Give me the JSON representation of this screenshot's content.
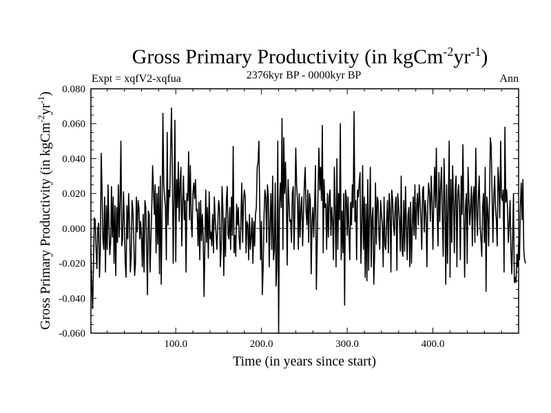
{
  "chart_data": {
    "type": "line",
    "title_main": "Gross Primary Productivity (in kgCm",
    "title_sup1": "-2",
    "title_mid": "yr",
    "title_sup2": "-1",
    "title_end": ")",
    "subtitle_left": "Expt = xqfV2-xqfua",
    "subtitle_center": "2376kyr BP - 0000kyr BP",
    "subtitle_right": "Ann",
    "xlabel": "Time (in years since start)",
    "ylabel_main": "Gross Primary Productivity (in kgCm",
    "ylabel_sup1": "-2",
    "ylabel_mid": "yr",
    "ylabel_sup2": "-1",
    "ylabel_end": ")",
    "xlim": [
      1,
      500
    ],
    "ylim": [
      -0.06,
      0.08
    ],
    "x_ticks": [
      100,
      200,
      300,
      400
    ],
    "x_tick_labels": [
      "100.0",
      "200.0",
      "300.0",
      "400.0"
    ],
    "y_ticks": [
      -0.06,
      -0.04,
      -0.02,
      0.0,
      0.02,
      0.04,
      0.06,
      0.08
    ],
    "y_tick_labels": [
      "-0.060",
      "-0.040",
      "-0.020",
      "0.000",
      "0.020",
      "0.040",
      "0.060",
      "0.080"
    ],
    "reference_line": 0.0,
    "series": [
      {
        "name": "Ann",
        "x_start": 1,
        "x_step": 1,
        "values": [
          -0.012,
          -0.032,
          -0.046,
          -0.022,
          0.006,
          0.005,
          -0.012,
          -0.023,
          0.0,
          0.003,
          -0.028,
          -0.013,
          0.043,
          0.022,
          -0.006,
          -0.012,
          0.018,
          -0.025,
          0.013,
          -0.012,
          0.025,
          0.002,
          -0.015,
          -0.008,
          0.024,
          -0.005,
          0.018,
          -0.02,
          0.013,
          -0.027,
          0.012,
          -0.008,
          0.025,
          -0.005,
          0.016,
          0.05,
          -0.01,
          -0.006,
          0.021,
          0.004,
          -0.019,
          -0.028,
          0.013,
          -0.006,
          0.02,
          0.004,
          -0.025,
          -0.016,
          0.016,
          0.01,
          -0.006,
          -0.027,
          -0.02,
          0.018,
          -0.002,
          0.016,
          0.012,
          -0.006,
          0.004,
          -0.005,
          -0.022,
          0.008,
          -0.025,
          0.016,
          0.012,
          -0.011,
          -0.038,
          0.01,
          0.008,
          -0.025,
          -0.006,
          0.012,
          0.036,
          0.022,
          0.008,
          0.025,
          -0.014,
          0.02,
          -0.009,
          0.024,
          -0.026,
          0.03,
          -0.032,
          0.008,
          0.066,
          0.025,
          0.018,
          0.012,
          -0.018,
          0.055,
          0.002,
          0.022,
          0.018,
          0.046,
          0.069,
          0.032,
          -0.02,
          0.018,
          0.062,
          -0.019,
          0.028,
          0.012,
          0.038,
          0.004,
          0.026,
          0.035,
          -0.01,
          0.015,
          0.03,
          0.005,
          0.016,
          -0.025,
          0.02,
          0.016,
          0.044,
          0.005,
          0.036,
          0.005,
          -0.005,
          0.02,
          0.026,
          0.017,
          0.028,
          0.01,
          0.011,
          -0.01,
          0.015,
          -0.018,
          0.016,
          -0.007,
          0.008,
          -0.004,
          -0.039,
          -0.009,
          0.022,
          -0.008,
          0.012,
          -0.017,
          0.021,
          -0.006,
          -0.002,
          -0.01,
          0.008,
          -0.014,
          0.018,
          0.005,
          -0.003,
          -0.012,
          0.002,
          0.016,
          0.012,
          -0.022,
          -0.012,
          0.024,
          0.01,
          -0.027,
          0.006,
          -0.016,
          0.015,
          0.024,
          -0.004,
          -0.006,
          0.012,
          -0.012,
          0.018,
          -0.004,
          0.047,
          -0.014,
          -0.004,
          -0.016,
          0.014,
          0.002,
          0.012,
          -0.006,
          -0.012,
          0.005,
          0.026,
          -0.008,
          0.016,
          0.022,
          0.018,
          -0.014,
          0.004,
          0.002,
          -0.018,
          0.008,
          -0.012,
          -0.005,
          0.006,
          -0.02,
          0.004,
          -0.01,
          0.008,
          0.012,
          0.035,
          0.038,
          0.05,
          0.012,
          -0.018,
          0.004,
          -0.038,
          -0.022,
          0.008,
          0.022,
          0.018,
          -0.008,
          0.025,
          0.018,
          -0.022,
          0.002,
          0.02,
          -0.012,
          0.03,
          -0.018,
          -0.012,
          0.026,
          -0.033,
          -0.021,
          0.05,
          -0.06,
          0.014,
          0.026,
          0.012,
          0.063,
          -0.012,
          0.052,
          0.02,
          0.038,
          0.018,
          -0.021,
          0.028,
          0.016,
          0.004,
          0.005,
          -0.008,
          0.02,
          0.024,
          -0.012,
          0.012,
          0.046,
          0.025,
          0.016,
          -0.012,
          0.02,
          -0.005,
          0.012,
          0.018,
          -0.01,
          0.008,
          0.025,
          0.035,
          0.01,
          0.002,
          0.022,
          -0.008,
          0.02,
          0.016,
          -0.026,
          0.004,
          0.012,
          -0.005,
          0.014,
          0.036,
          -0.035,
          -0.01,
          0.022,
          0.046,
          0.022,
          0.035,
          0.016,
          0.059,
          -0.014,
          0.028,
          0.012,
          0.014,
          -0.012,
          0.02,
          -0.005,
          0.018,
          0.022,
          -0.004,
          0.012,
          0.004,
          -0.018,
          0.035,
          0.012,
          -0.022,
          0.04,
          -0.012,
          0.02,
          0.005,
          0.06,
          -0.018,
          0.01,
          -0.014,
          0.02,
          -0.044,
          0.022,
          0.018,
          -0.004,
          0.018,
          -0.002,
          -0.018,
          0.015,
          0.002,
          0.025,
          0.012,
          0.067,
          0.004,
          0.016,
          -0.018,
          0.022,
          0.018,
          0.026,
          0.032,
          -0.02,
          0.002,
          0.036,
          -0.012,
          0.018,
          -0.028,
          0.014,
          -0.03,
          0.028,
          -0.024,
          0.008,
          0.035,
          -0.022,
          0.006,
          0.012,
          -0.032,
          -0.015,
          0.026,
          -0.009,
          0.018,
          0.016,
          -0.004,
          -0.012,
          0.016,
          0.008,
          0.002,
          -0.022,
          0.018,
          -0.01,
          -0.012,
          0.004,
          0.016,
          -0.014,
          0.02,
          0.012,
          -0.025,
          0.022,
          0.016,
          0.002,
          -0.004,
          0.014,
          0.018,
          -0.024,
          0.02,
          0.012,
          0.004,
          -0.013,
          0.03,
          -0.012,
          -0.016,
          0.016,
          -0.013,
          0.024,
          0.002,
          -0.018,
          0.008,
          0.012,
          -0.022,
          0.015,
          -0.02,
          0.002,
          0.018,
          -0.004,
          0.025,
          -0.006,
          0.012,
          0.02,
          0.002,
          0.025,
          0.016,
          0.005,
          -0.012,
          0.022,
          0.024,
          -0.002,
          0.016,
          0.008,
          -0.022,
          0.014,
          0.026,
          0.02,
          0.004,
          0.03,
          0.016,
          -0.012,
          0.017,
          0.035,
          0.012,
          0.046,
          0.008,
          -0.01,
          0.032,
          0.004,
          0.024,
          0.035,
          0.006,
          -0.016,
          0.04,
          0.015,
          -0.032,
          0.025,
          -0.02,
          0.012,
          0.05,
          -0.028,
          0.028,
          -0.008,
          0.036,
          0.015,
          -0.014,
          0.022,
          0.03,
          -0.022,
          0.02,
          0.025,
          0.012,
          -0.018,
          0.03,
          0.008,
          0.048,
          0.01,
          -0.028,
          0.012,
          0.02,
          -0.02,
          0.035,
          0.018,
          0.002,
          0.012,
          0.024,
          -0.01,
          0.018,
          0.024,
          -0.008,
          0.046,
          0.01,
          -0.004,
          0.018,
          0.03,
          0.002,
          -0.006,
          -0.016,
          0.012,
          0.02,
          -0.008,
          0.035,
          -0.036,
          0.018,
          0.01,
          -0.01,
          0.016,
          0.052,
          0.047,
          0.02,
          -0.008,
          0.018,
          0.03,
          0.012,
          0.005,
          -0.01,
          0.035,
          0.025,
          0.006,
          0.05,
          0.018,
          0.016,
          0.022,
          -0.025,
          0.058,
          0.015,
          0.022,
          0.012,
          -0.008,
          0.002,
          0.016,
          -0.012,
          -0.026,
          -0.006,
          0.02,
          -0.031,
          -0.028,
          -0.031,
          -0.015,
          -0.022,
          -0.008,
          -0.018,
          0.012,
          0.026,
          0.005,
          0.028,
          -0.012,
          -0.018,
          -0.02
        ]
      }
    ]
  }
}
